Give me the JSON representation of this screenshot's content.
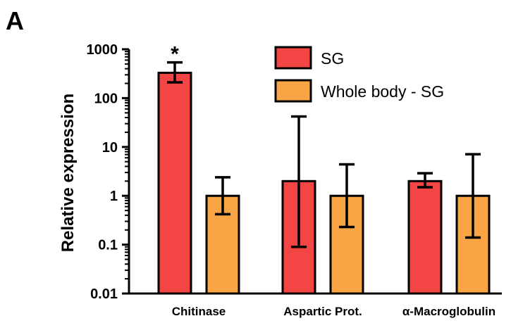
{
  "panel_label": "A",
  "chart_data": {
    "type": "bar",
    "title": "",
    "xlabel": "",
    "ylabel": "Relative expression",
    "yscale": "log",
    "ylim": [
      0.01,
      1000
    ],
    "yticks": [
      0.01,
      0.1,
      1,
      10,
      100,
      1000
    ],
    "ytick_labels": [
      "0.01",
      "0.1",
      "1",
      "10",
      "100",
      "1000"
    ],
    "categories": [
      "Chitinase",
      "Aspartic Prot.",
      "α-Macroglobulin"
    ],
    "series": [
      {
        "name": "SG",
        "color": "#f44545",
        "values": [
          330,
          2.0,
          2.0
        ],
        "error_low": [
          210,
          0.09,
          1.5
        ],
        "error_high": [
          540,
          42,
          2.9
        ]
      },
      {
        "name": "Whole body - SG",
        "color": "#f9a445",
        "values": [
          1.0,
          1.0,
          1.0
        ],
        "error_low": [
          0.42,
          0.23,
          0.14
        ],
        "error_high": [
          2.4,
          4.4,
          7.1
        ]
      }
    ],
    "legend_position": "top-right",
    "grid": false,
    "annotations": [
      {
        "category": "Chitinase",
        "series": "SG",
        "text": "*"
      }
    ]
  }
}
